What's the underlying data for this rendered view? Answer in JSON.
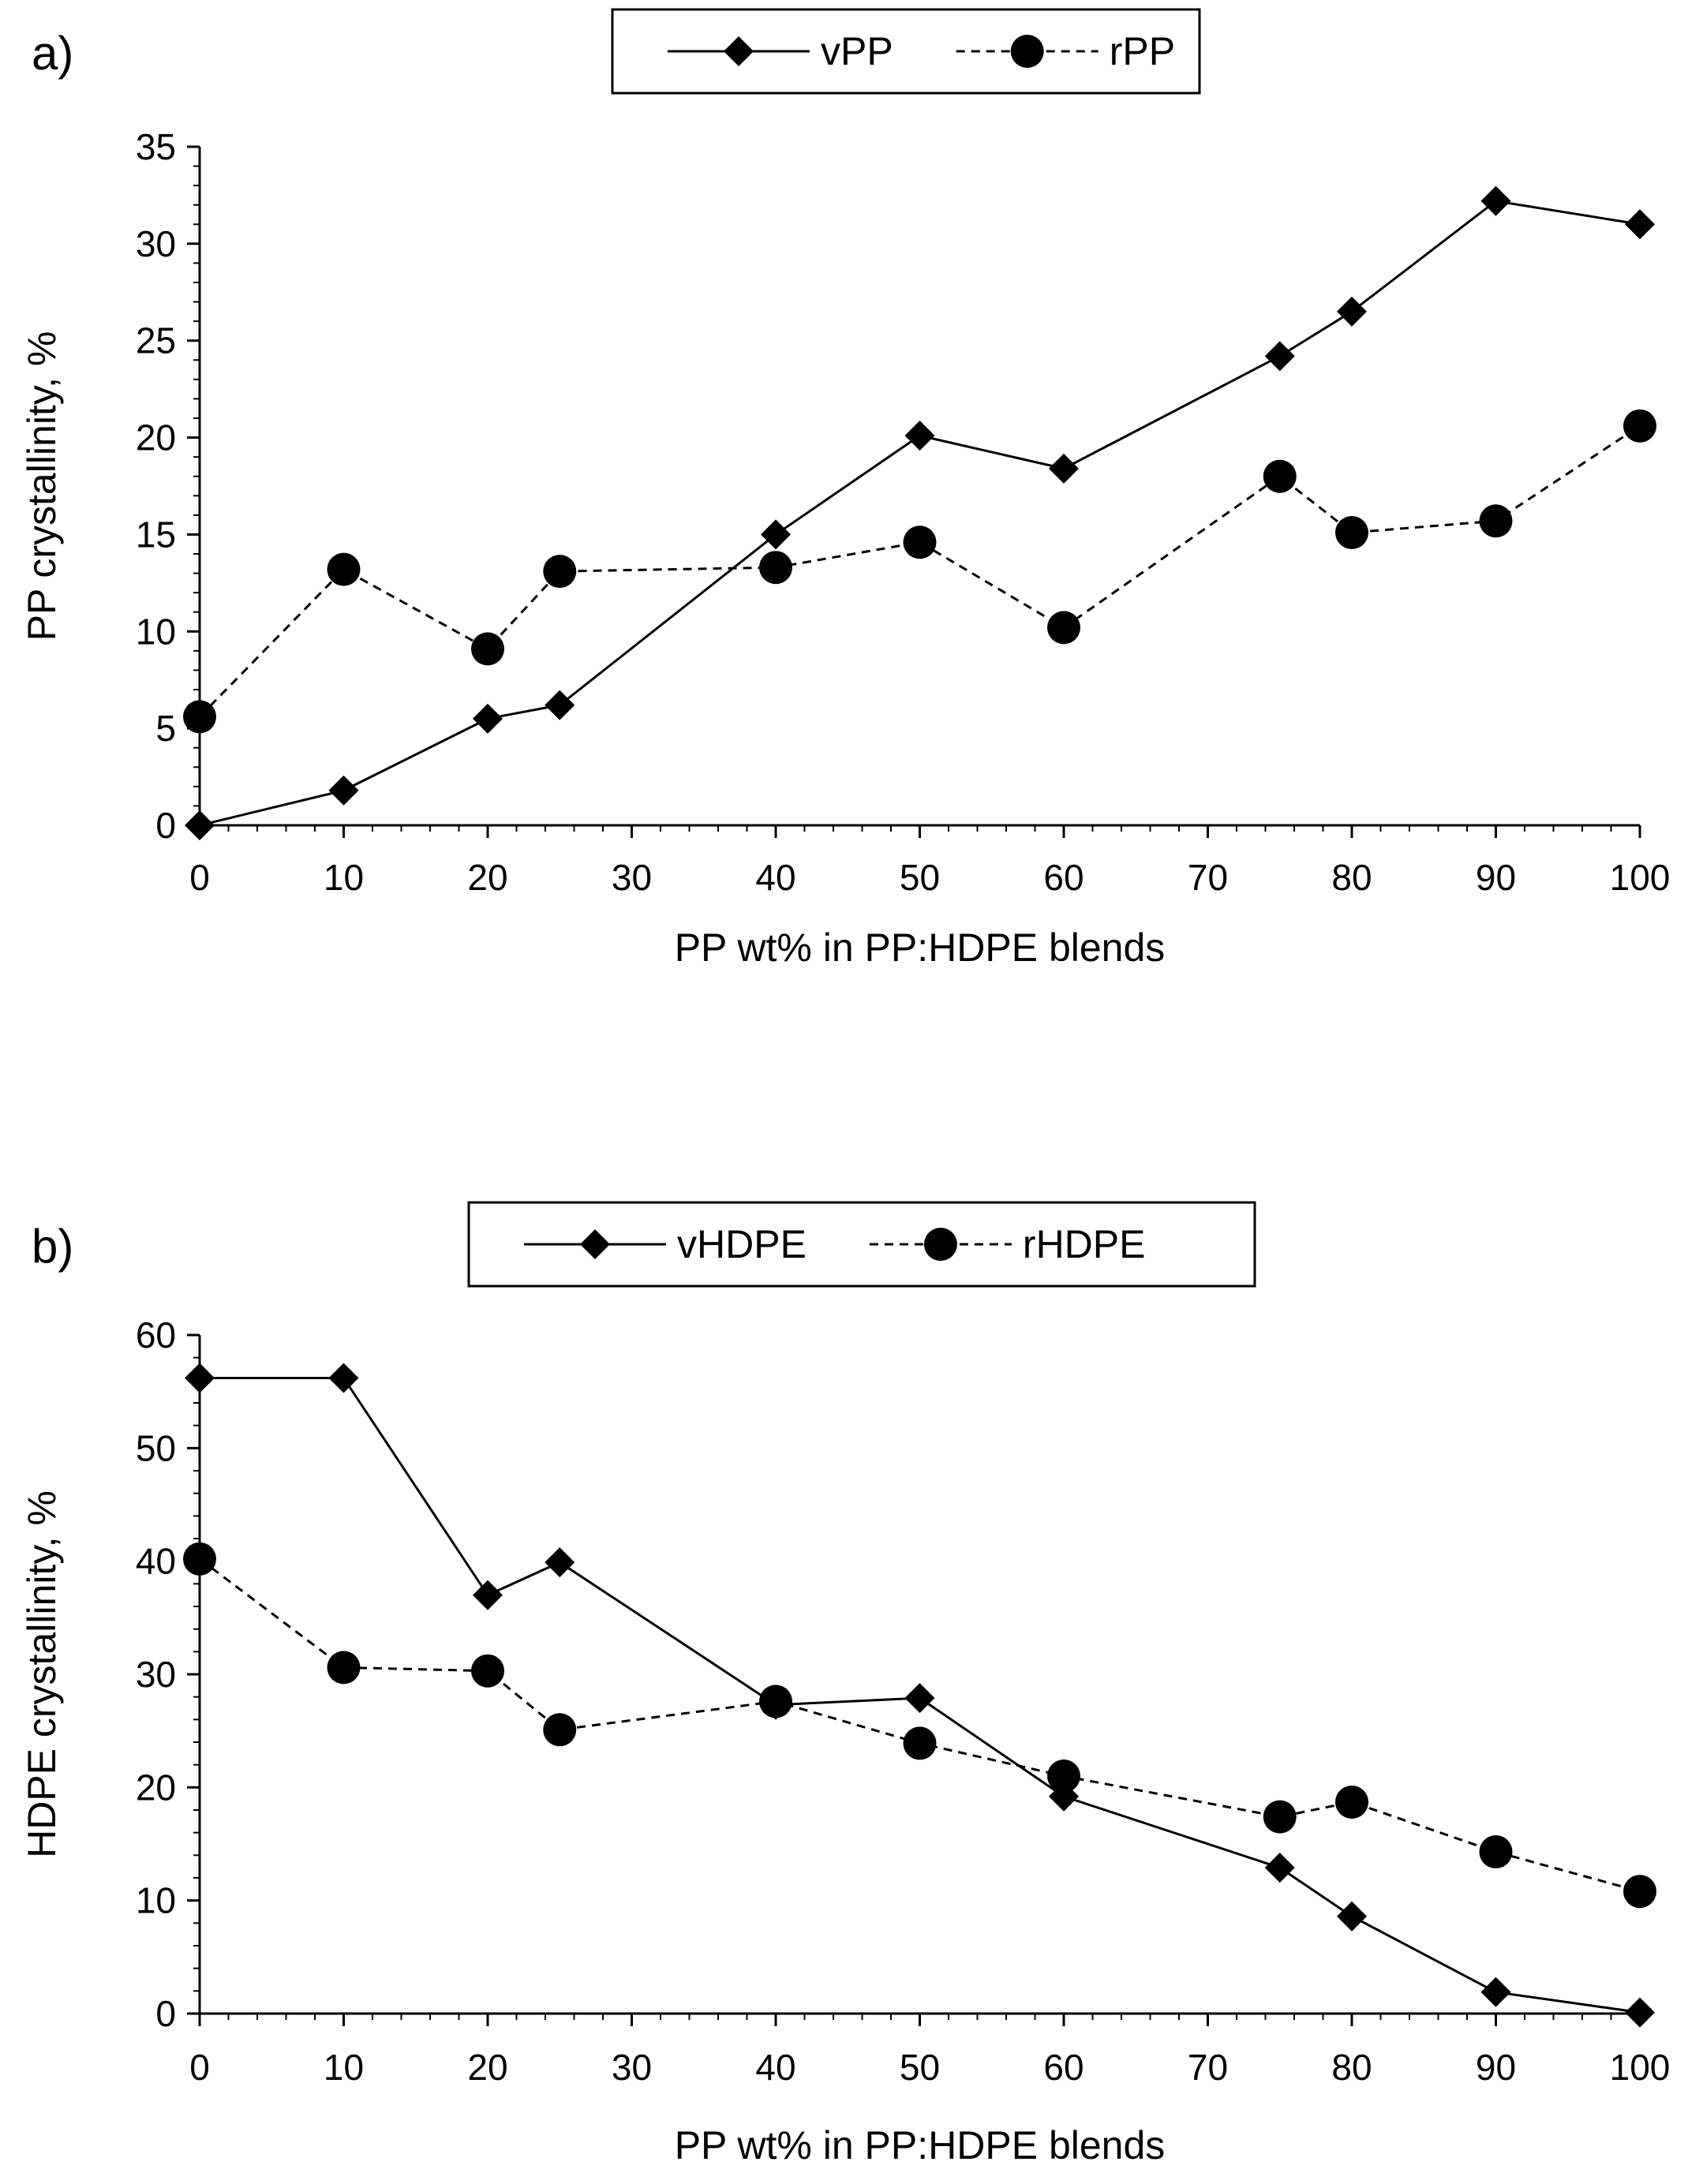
{
  "chart_data": [
    {
      "type": "line",
      "panel_label": "a)",
      "title": "",
      "xlabel": "PP wt% in PP:HDPE blends",
      "ylabel": "PP crystallinity, %",
      "xlim": [
        0,
        100
      ],
      "ylim": [
        0,
        35
      ],
      "xticks": [
        0,
        10,
        20,
        30,
        40,
        50,
        60,
        70,
        80,
        90,
        100
      ],
      "xtick_labels": [
        "0",
        "10",
        "20",
        "30",
        "40",
        "50",
        "60",
        "70",
        "80",
        "90",
        "100"
      ],
      "yticks": [
        0,
        5,
        10,
        15,
        20,
        25,
        30,
        35
      ],
      "ytick_labels": [
        "0",
        "5",
        "10",
        "15",
        "20",
        "25",
        "30",
        "35"
      ],
      "grid": false,
      "legend_position": "top-center",
      "x": [
        0,
        10,
        20,
        25,
        40,
        50,
        60,
        75,
        80,
        90,
        100
      ],
      "series": [
        {
          "name": "vPP",
          "line_style": "solid",
          "marker": "diamond",
          "values": [
            0,
            1.8,
            5.5,
            6.2,
            15.0,
            20.1,
            18.4,
            24.2,
            26.5,
            32.2,
            31.0
          ]
        },
        {
          "name": "rPP",
          "line_style": "dashed",
          "marker": "circle",
          "values": [
            5.6,
            13.2,
            9.1,
            13.1,
            13.3,
            14.6,
            10.2,
            18.0,
            15.1,
            15.7,
            20.6
          ]
        }
      ]
    },
    {
      "type": "line",
      "panel_label": "b)",
      "title": "",
      "xlabel": "PP wt% in PP:HDPE blends",
      "ylabel": "HDPE crystallinity, %",
      "xlim": [
        0,
        100
      ],
      "ylim": [
        0,
        60
      ],
      "xticks": [
        0,
        10,
        20,
        30,
        40,
        50,
        60,
        70,
        80,
        90,
        100
      ],
      "xtick_labels": [
        "0",
        "10",
        "20",
        "30",
        "40",
        "50",
        "60",
        "70",
        "80",
        "90",
        "100"
      ],
      "yticks": [
        0,
        10,
        20,
        30,
        40,
        50,
        60
      ],
      "ytick_labels": [
        "0",
        "10",
        "20",
        "30",
        "40",
        "50",
        "60"
      ],
      "grid": false,
      "legend_position": "top-center",
      "x": [
        0,
        10,
        20,
        25,
        40,
        50,
        60,
        75,
        80,
        90,
        100
      ],
      "series": [
        {
          "name": "vHDPE",
          "line_style": "solid",
          "marker": "diamond",
          "values": [
            56.2,
            56.2,
            37.0,
            39.9,
            27.3,
            27.9,
            19.2,
            12.9,
            8.6,
            1.9,
            0.1
          ]
        },
        {
          "name": "rHDPE",
          "line_style": "dashed",
          "marker": "circle",
          "values": [
            40.2,
            30.6,
            30.3,
            25.1,
            27.6,
            23.9,
            21.0,
            17.4,
            18.7,
            14.3,
            10.8
          ]
        }
      ]
    }
  ]
}
